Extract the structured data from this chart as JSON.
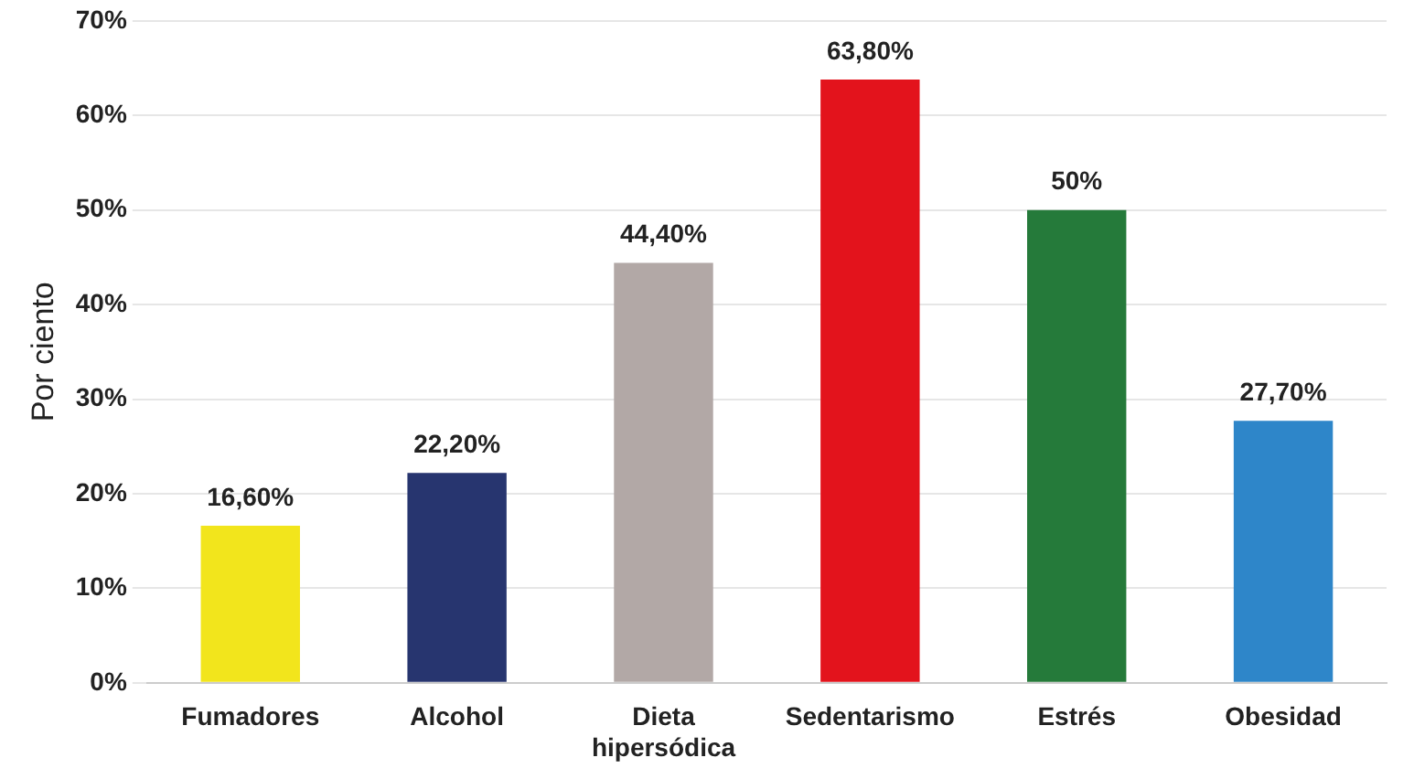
{
  "chart_data": {
    "type": "bar",
    "ylabel": "Por ciento",
    "categories": [
      "Fumadores",
      "Alcohol",
      "Dieta hipersódica",
      "Sedentarismo",
      "Estrés",
      "Obesidad"
    ],
    "values": [
      16.6,
      22.2,
      44.4,
      63.8,
      50,
      27.7
    ],
    "colors": [
      "#f2e51c",
      "#27356f",
      "#b2a8a6",
      "#e3131c",
      "#257a3a",
      "#2e86c9"
    ],
    "value_labels": [
      "16,60%",
      "22,20%",
      "44,40%",
      "63,80%",
      "50%",
      "27,70%"
    ],
    "ylim": [
      0,
      70
    ],
    "yticks": [
      {
        "value": 0,
        "label": "0%"
      },
      {
        "value": 10,
        "label": "10%"
      },
      {
        "value": 20,
        "label": "20%"
      },
      {
        "value": 30,
        "label": "30%"
      },
      {
        "value": 40,
        "label": "40%"
      },
      {
        "value": 50,
        "label": "50%"
      },
      {
        "value": 60,
        "label": "60%"
      },
      {
        "value": 70,
        "label": "70%"
      }
    ],
    "grid": "y",
    "legend": false
  }
}
